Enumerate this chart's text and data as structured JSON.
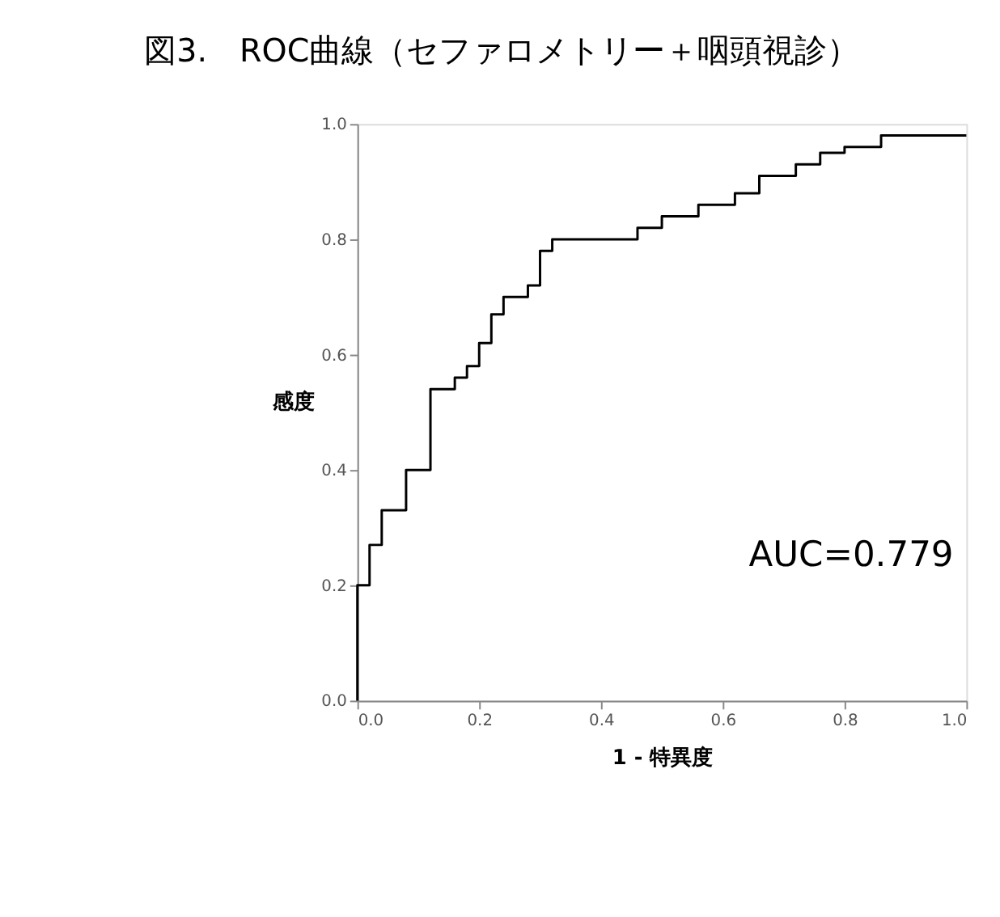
{
  "chart_data": {
    "type": "line",
    "title": "図3.　ROC曲線（セファロメトリー＋咽頭視診）",
    "xlabel": "1 - 特異度",
    "ylabel": "感度",
    "x": [
      0,
      0,
      0.02,
      0.02,
      0.04,
      0.04,
      0.08,
      0.08,
      0.12,
      0.12,
      0.16,
      0.16,
      0.18,
      0.18,
      0.2,
      0.2,
      0.22,
      0.22,
      0.24,
      0.24,
      0.28,
      0.28,
      0.3,
      0.3,
      0.32,
      0.32,
      0.46,
      0.46,
      0.5,
      0.5,
      0.56,
      0.56,
      0.62,
      0.62,
      0.66,
      0.66,
      0.72,
      0.72,
      0.76,
      0.76,
      0.8,
      0.8,
      0.86,
      0.86,
      1.0
    ],
    "series": [
      {
        "color": "#000000",
        "values": [
          0,
          0.2,
          0.2,
          0.27,
          0.27,
          0.33,
          0.33,
          0.4,
          0.4,
          0.54,
          0.54,
          0.56,
          0.56,
          0.58,
          0.58,
          0.62,
          0.62,
          0.67,
          0.67,
          0.7,
          0.7,
          0.72,
          0.72,
          0.78,
          0.78,
          0.8,
          0.8,
          0.82,
          0.82,
          0.84,
          0.84,
          0.86,
          0.86,
          0.88,
          0.88,
          0.91,
          0.91,
          0.93,
          0.93,
          0.95,
          0.95,
          0.96,
          0.96,
          0.98,
          0.98
        ]
      }
    ],
    "xlim": [
      0,
      1
    ],
    "ylim": [
      0,
      1
    ],
    "xticks": [
      {
        "value": 0,
        "label": "0.0"
      },
      0.2,
      0.4,
      0.6,
      0.8,
      {
        "value": 1,
        "label": "1.0"
      }
    ],
    "yticks": [
      {
        "value": 0,
        "label": "0.0"
      },
      0.2,
      0.4,
      0.6,
      0.8,
      {
        "value": 1,
        "label": "1.0"
      }
    ],
    "annotations": [
      "AUC=0.779"
    ],
    "grid": false,
    "marker": "none",
    "line_style": "solid"
  }
}
